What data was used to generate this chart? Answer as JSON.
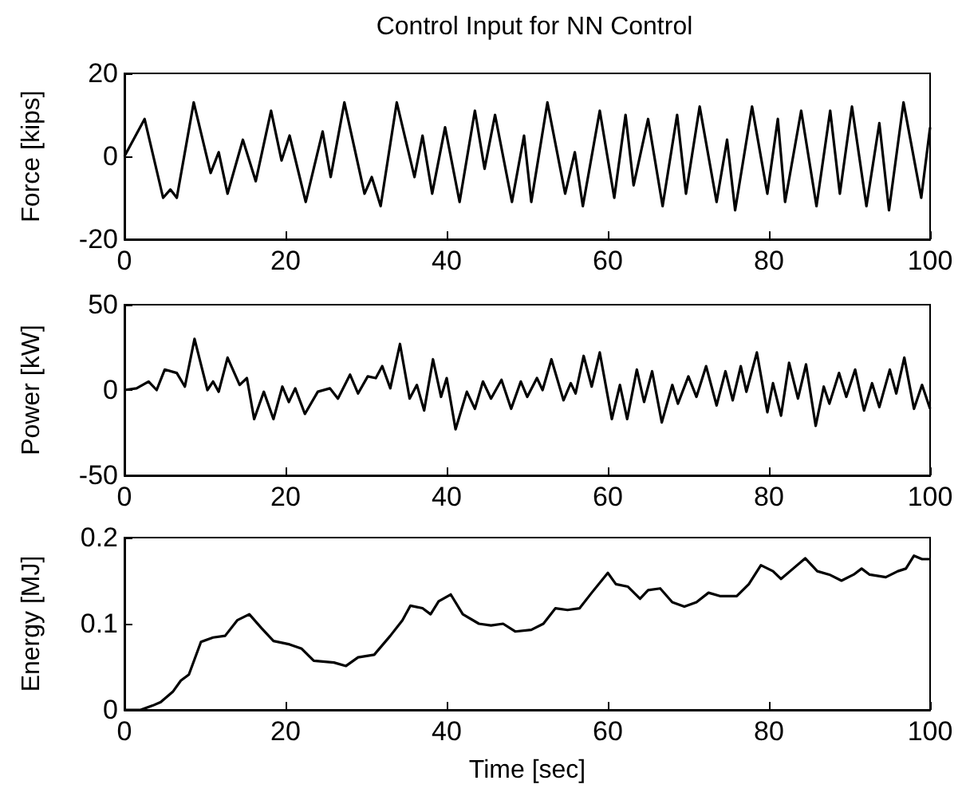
{
  "chart_data": [
    {
      "type": "line",
      "title": "Control Input for NN Control",
      "ylabel": "Force [kips]",
      "color": "#000000",
      "xlim": [
        0,
        100
      ],
      "xticks": [
        0,
        20,
        40,
        60,
        80,
        100
      ],
      "ylim": [
        -20,
        20
      ],
      "yticks": [
        -20,
        0,
        20
      ],
      "x": [
        0,
        2.5,
        4.8,
        5.7,
        6.5,
        8.6,
        10.7,
        11.7,
        12.8,
        14.7,
        16.3,
        18.2,
        19.5,
        20.5,
        22.5,
        24.6,
        25.6,
        27.3,
        29.8,
        30.7,
        31.8,
        33.8,
        36,
        37,
        38.2,
        39.8,
        41.6,
        43.5,
        44.7,
        46,
        48.1,
        49.6,
        50.5,
        52.5,
        54.7,
        55.9,
        56.9,
        59,
        60.8,
        62.2,
        63.2,
        65,
        66.8,
        68.6,
        69.7,
        71.4,
        73.5,
        74.8,
        75.8,
        77.9,
        79.8,
        81.1,
        82,
        84,
        85.9,
        87.6,
        88.8,
        90.3,
        92.1,
        93.7,
        94.9,
        96.7,
        98.9,
        100
      ],
      "values": [
        0,
        9,
        -10,
        -8,
        -10,
        13,
        -4,
        1,
        -9,
        4,
        -6,
        11,
        -1,
        5,
        -11,
        6,
        -5,
        13,
        -9,
        -5,
        -12,
        13,
        -5,
        5,
        -9,
        7,
        -11,
        11,
        -3,
        10,
        -11,
        5,
        -11,
        13,
        -9,
        1,
        -12,
        11,
        -10,
        10,
        -7,
        9,
        -12,
        10,
        -9,
        12,
        -11,
        4,
        -13,
        12,
        -9,
        9,
        -11,
        11,
        -12,
        11,
        -9,
        12,
        -12,
        8,
        -13,
        13,
        -10,
        7
      ]
    },
    {
      "type": "line",
      "ylabel": "Power [kW]",
      "color": "#000000",
      "xlim": [
        0,
        100
      ],
      "xticks": [
        0,
        20,
        40,
        60,
        80,
        100
      ],
      "ylim": [
        -50,
        50
      ],
      "yticks": [
        -50,
        0,
        50
      ],
      "x": [
        0,
        1.5,
        3,
        4,
        5,
        6.5,
        7.5,
        8.7,
        10.3,
        11,
        11.7,
        12.8,
        14.3,
        15.2,
        16.1,
        17.3,
        18.5,
        19.6,
        20.4,
        21.2,
        22.4,
        24,
        25.5,
        26.5,
        28,
        29,
        30.2,
        31.2,
        32,
        33,
        34.2,
        35.4,
        36.3,
        37.2,
        38.3,
        39.3,
        40,
        41.1,
        42.5,
        43.5,
        44.5,
        45.5,
        46.8,
        48,
        49.2,
        50,
        51.2,
        51.9,
        53,
        54.5,
        55.4,
        56,
        57,
        58,
        59,
        60.5,
        61.5,
        62.4,
        63.6,
        64.5,
        65.5,
        66.7,
        68,
        68.7,
        70,
        71,
        72.2,
        73.5,
        74.6,
        75.5,
        76.5,
        77.2,
        78.5,
        79.8,
        80.5,
        81.5,
        82.5,
        83.6,
        84.6,
        85.8,
        86.8,
        87.5,
        88.7,
        89.6,
        90.7,
        91.8,
        92.8,
        93.7,
        95,
        95.8,
        96.8,
        98,
        99,
        100
      ],
      "values": [
        0,
        1,
        5,
        0,
        12,
        10,
        2,
        30,
        0,
        5,
        -1,
        19,
        3,
        7,
        -17,
        -1,
        -17,
        2,
        -7,
        1,
        -14,
        -1,
        1,
        -5,
        9,
        -2,
        8,
        7,
        14,
        1,
        27,
        -5,
        3,
        -12,
        18,
        -4,
        7,
        -23,
        -1,
        -11,
        5,
        -5,
        6,
        -11,
        5,
        -4,
        7,
        0,
        18,
        -6,
        4,
        -2,
        20,
        2,
        22,
        -17,
        3,
        -17,
        12,
        -7,
        11,
        -19,
        3,
        -8,
        8,
        -4,
        14,
        -9,
        11,
        -6,
        14,
        -1,
        22,
        -13,
        4,
        -15,
        16,
        -5,
        15,
        -21,
        2,
        -8,
        10,
        -4,
        12,
        -12,
        4,
        -10,
        12,
        -2,
        19,
        -11,
        3,
        -11
      ]
    },
    {
      "type": "line",
      "xlabel": "Time [sec]",
      "ylabel": "Energy [MJ]",
      "color": "#000000",
      "xlim": [
        0,
        100
      ],
      "xticks": [
        0,
        20,
        40,
        60,
        80,
        100
      ],
      "ylim": [
        0,
        0.2
      ],
      "yticks": [
        0,
        0.1,
        0.2
      ],
      "x": [
        0,
        2,
        3.5,
        4.5,
        6,
        7,
        8,
        9.5,
        11,
        12.5,
        14,
        15.5,
        17,
        18.5,
        20.5,
        22,
        23.5,
        26,
        27.5,
        29,
        31,
        33,
        34.5,
        35.5,
        37,
        38,
        39,
        40.5,
        42,
        44,
        45.5,
        47,
        48.5,
        50.5,
        52,
        53.5,
        55,
        56.5,
        58,
        60,
        61,
        62.5,
        64,
        65,
        66.5,
        68,
        69.5,
        71,
        72.5,
        74,
        76,
        77.5,
        79,
        80.5,
        81.5,
        83,
        84.5,
        86,
        87.5,
        89,
        90.5,
        91.5,
        92.5,
        94.5,
        96,
        97,
        98,
        99,
        100
      ],
      "values": [
        0,
        0,
        0.005,
        0.009,
        0.021,
        0.034,
        0.041,
        0.079,
        0.084,
        0.086,
        0.104,
        0.111,
        0.095,
        0.08,
        0.076,
        0.071,
        0.057,
        0.055,
        0.051,
        0.061,
        0.064,
        0.086,
        0.104,
        0.121,
        0.118,
        0.111,
        0.126,
        0.134,
        0.111,
        0.1,
        0.098,
        0.1,
        0.091,
        0.093,
        0.1,
        0.118,
        0.116,
        0.118,
        0.136,
        0.159,
        0.146,
        0.143,
        0.129,
        0.139,
        0.141,
        0.125,
        0.12,
        0.125,
        0.136,
        0.132,
        0.132,
        0.146,
        0.168,
        0.161,
        0.152,
        0.164,
        0.176,
        0.161,
        0.157,
        0.15,
        0.157,
        0.164,
        0.157,
        0.154,
        0.161,
        0.164,
        0.179,
        0.175,
        0.175
      ]
    }
  ]
}
